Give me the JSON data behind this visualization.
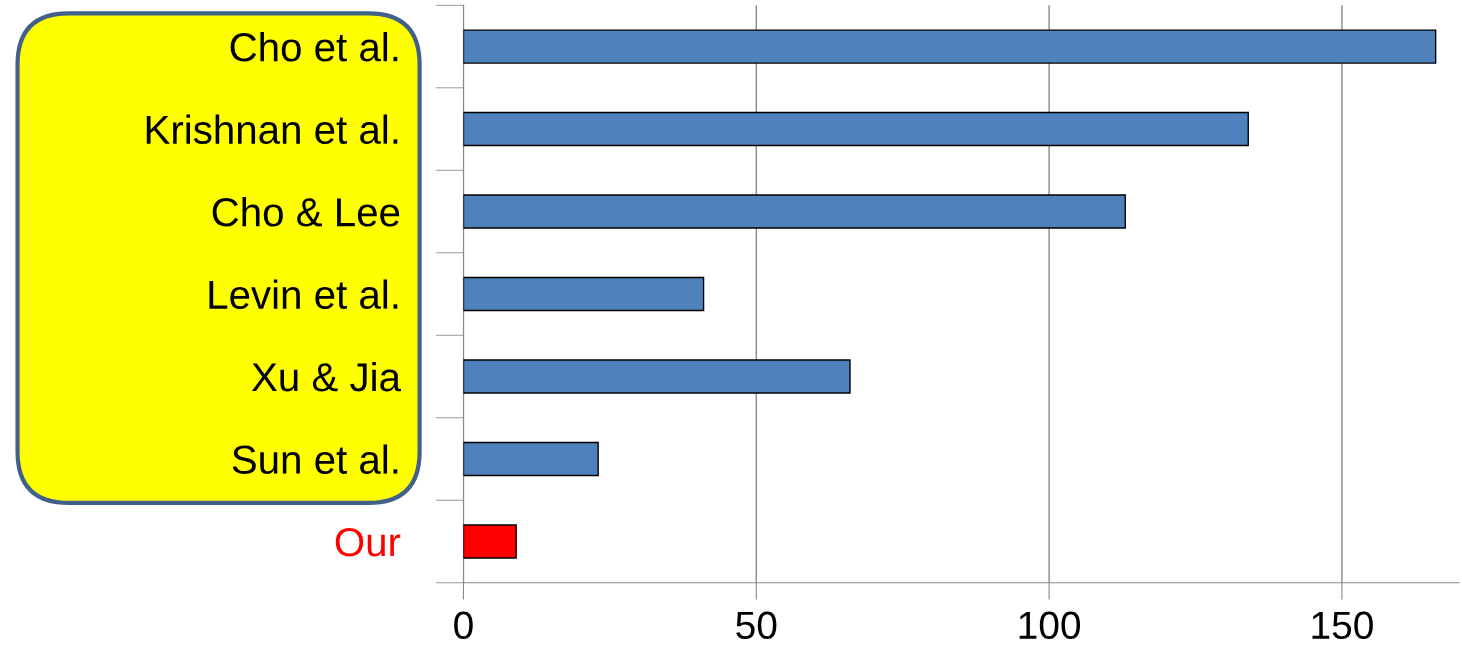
{
  "chart_data": {
    "type": "bar",
    "orientation": "horizontal",
    "categories": [
      "Cho et al.",
      "Krishnan et al.",
      "Cho & Lee",
      "Levin et al.",
      "Xu & Jia",
      "Sun et al.",
      "Our"
    ],
    "values": [
      166,
      134,
      113,
      41,
      66,
      23,
      9
    ],
    "colors": [
      "#4f81bd",
      "#4f81bd",
      "#4f81bd",
      "#4f81bd",
      "#4f81bd",
      "#4f81bd",
      "#ff0000"
    ],
    "xlim": [
      0,
      170
    ],
    "xticks": [
      0,
      50,
      100,
      150
    ],
    "grid": "x"
  }
}
